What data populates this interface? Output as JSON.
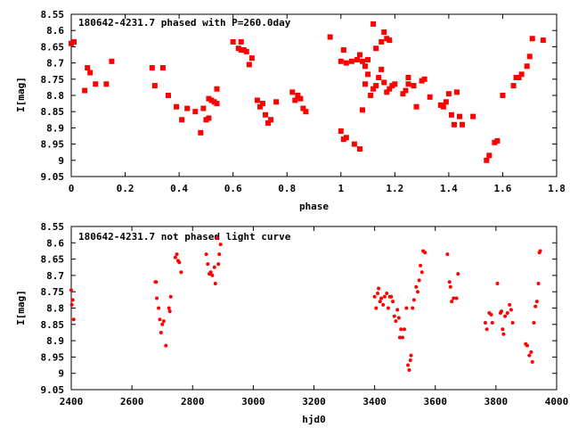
{
  "chart_data": [
    {
      "type": "scatter",
      "title": "180642-4231.7 phased with P=260.0day",
      "xlabel": "phase",
      "ylabel": "I[mag]",
      "xlim": [
        0,
        1.8
      ],
      "ylim": [
        8.55,
        9.05
      ],
      "y_inverted": true,
      "xticks": [
        "0",
        "0.2",
        "0.4",
        "0.6",
        "0.8",
        "1",
        "1.2",
        "1.4",
        "1.6",
        "1.8"
      ],
      "yticks": [
        "8.55",
        "8.6",
        "8.65",
        "8.7",
        "8.75",
        "8.8",
        "8.85",
        "8.9",
        "8.95",
        "9",
        "9.05"
      ],
      "marker": "filled-square",
      "color": "#ff0000",
      "points": [
        [
          0.0,
          8.64
        ],
        [
          0.01,
          8.635
        ],
        [
          0.05,
          8.785
        ],
        [
          0.06,
          8.715
        ],
        [
          0.07,
          8.73
        ],
        [
          0.09,
          8.765
        ],
        [
          0.13,
          8.765
        ],
        [
          0.15,
          8.695
        ],
        [
          0.3,
          8.715
        ],
        [
          0.31,
          8.77
        ],
        [
          0.34,
          8.715
        ],
        [
          0.36,
          8.8
        ],
        [
          0.39,
          8.835
        ],
        [
          0.41,
          8.875
        ],
        [
          0.43,
          8.84
        ],
        [
          0.46,
          8.85
        ],
        [
          0.48,
          8.915
        ],
        [
          0.49,
          8.84
        ],
        [
          0.5,
          8.875
        ],
        [
          0.51,
          8.87
        ],
        [
          0.51,
          8.81
        ],
        [
          0.52,
          8.815
        ],
        [
          0.53,
          8.82
        ],
        [
          0.54,
          8.78
        ],
        [
          0.54,
          8.825
        ],
        [
          0.6,
          8.635
        ],
        [
          0.62,
          8.655
        ],
        [
          0.63,
          8.66
        ],
        [
          0.63,
          8.635
        ],
        [
          0.64,
          8.66
        ],
        [
          0.65,
          8.665
        ],
        [
          0.66,
          8.705
        ],
        [
          0.67,
          8.685
        ],
        [
          0.69,
          8.815
        ],
        [
          0.7,
          8.835
        ],
        [
          0.71,
          8.825
        ],
        [
          0.72,
          8.86
        ],
        [
          0.73,
          8.885
        ],
        [
          0.74,
          8.875
        ],
        [
          0.76,
          8.82
        ],
        [
          0.82,
          8.79
        ],
        [
          0.83,
          8.815
        ],
        [
          0.84,
          8.8
        ],
        [
          0.85,
          8.81
        ],
        [
          0.86,
          8.84
        ],
        [
          0.87,
          8.85
        ],
        [
          0.96,
          8.62
        ],
        [
          1.0,
          8.695
        ],
        [
          1.0,
          8.91
        ],
        [
          1.01,
          8.66
        ],
        [
          1.01,
          8.935
        ],
        [
          1.02,
          8.93
        ],
        [
          1.02,
          8.7
        ],
        [
          1.04,
          8.695
        ],
        [
          1.05,
          8.95
        ],
        [
          1.06,
          8.69
        ],
        [
          1.07,
          8.675
        ],
        [
          1.07,
          8.965
        ],
        [
          1.08,
          8.845
        ],
        [
          1.08,
          8.695
        ],
        [
          1.09,
          8.765
        ],
        [
          1.09,
          8.71
        ],
        [
          1.1,
          8.735
        ],
        [
          1.1,
          8.69
        ],
        [
          1.11,
          8.8
        ],
        [
          1.12,
          8.58
        ],
        [
          1.12,
          8.78
        ],
        [
          1.13,
          8.655
        ],
        [
          1.13,
          8.77
        ],
        [
          1.14,
          8.745
        ],
        [
          1.15,
          8.72
        ],
        [
          1.15,
          8.635
        ],
        [
          1.16,
          8.76
        ],
        [
          1.16,
          8.605
        ],
        [
          1.17,
          8.79
        ],
        [
          1.17,
          8.625
        ],
        [
          1.18,
          8.63
        ],
        [
          1.18,
          8.78
        ],
        [
          1.19,
          8.77
        ],
        [
          1.2,
          8.765
        ],
        [
          1.23,
          8.795
        ],
        [
          1.24,
          8.785
        ],
        [
          1.25,
          8.745
        ],
        [
          1.25,
          8.765
        ],
        [
          1.27,
          8.77
        ],
        [
          1.28,
          8.835
        ],
        [
          1.3,
          8.755
        ],
        [
          1.31,
          8.75
        ],
        [
          1.33,
          8.805
        ],
        [
          1.37,
          8.83
        ],
        [
          1.38,
          8.835
        ],
        [
          1.39,
          8.82
        ],
        [
          1.4,
          8.795
        ],
        [
          1.41,
          8.86
        ],
        [
          1.42,
          8.89
        ],
        [
          1.43,
          8.79
        ],
        [
          1.44,
          8.865
        ],
        [
          1.45,
          8.89
        ],
        [
          1.49,
          8.865
        ],
        [
          1.54,
          9.0
        ],
        [
          1.55,
          8.985
        ],
        [
          1.57,
          8.945
        ],
        [
          1.58,
          8.94
        ],
        [
          1.6,
          8.8
        ],
        [
          1.64,
          8.77
        ],
        [
          1.65,
          8.745
        ],
        [
          1.66,
          8.745
        ],
        [
          1.67,
          8.735
        ],
        [
          1.69,
          8.71
        ],
        [
          1.7,
          8.68
        ],
        [
          1.71,
          8.625
        ],
        [
          1.75,
          8.63
        ]
      ]
    },
    {
      "type": "scatter",
      "title": "180642-4231.7 not phased light curve",
      "xlabel": "hjd0",
      "ylabel": "I[mag]",
      "xlim": [
        2400,
        4000
      ],
      "ylim": [
        8.55,
        9.05
      ],
      "y_inverted": true,
      "xticks": [
        "2400",
        "2600",
        "2800",
        "3000",
        "3200",
        "3400",
        "3600",
        "3800",
        "4000"
      ],
      "yticks": [
        "8.55",
        "8.6",
        "8.65",
        "8.7",
        "8.75",
        "8.8",
        "8.85",
        "8.9",
        "8.95",
        "9",
        "9.05"
      ],
      "marker": "small-dot",
      "color": "#ff0000",
      "points": [
        [
          2400,
          8.745
        ],
        [
          2402,
          8.79
        ],
        [
          2405,
          8.775
        ],
        [
          2408,
          8.835
        ],
        [
          2677,
          8.72
        ],
        [
          2680,
          8.72
        ],
        [
          2682,
          8.77
        ],
        [
          2688,
          8.8
        ],
        [
          2692,
          8.835
        ],
        [
          2696,
          8.875
        ],
        [
          2700,
          8.85
        ],
        [
          2705,
          8.84
        ],
        [
          2712,
          8.915
        ],
        [
          2722,
          8.8
        ],
        [
          2725,
          8.81
        ],
        [
          2728,
          8.765
        ],
        [
          2743,
          8.645
        ],
        [
          2748,
          8.635
        ],
        [
          2752,
          8.655
        ],
        [
          2756,
          8.66
        ],
        [
          2762,
          8.69
        ],
        [
          2845,
          8.635
        ],
        [
          2850,
          8.665
        ],
        [
          2855,
          8.695
        ],
        [
          2860,
          8.69
        ],
        [
          2865,
          8.7
        ],
        [
          2872,
          8.675
        ],
        [
          2875,
          8.725
        ],
        [
          2880,
          8.585
        ],
        [
          2885,
          8.665
        ],
        [
          2888,
          8.635
        ],
        [
          2892,
          8.605
        ],
        [
          3400,
          8.765
        ],
        [
          3405,
          8.8
        ],
        [
          3410,
          8.755
        ],
        [
          3413,
          8.74
        ],
        [
          3418,
          8.78
        ],
        [
          3422,
          8.77
        ],
        [
          3428,
          8.79
        ],
        [
          3433,
          8.765
        ],
        [
          3440,
          8.755
        ],
        [
          3445,
          8.8
        ],
        [
          3450,
          8.765
        ],
        [
          3455,
          8.765
        ],
        [
          3460,
          8.78
        ],
        [
          3465,
          8.825
        ],
        [
          3470,
          8.84
        ],
        [
          3475,
          8.805
        ],
        [
          3480,
          8.83
        ],
        [
          3483,
          8.89
        ],
        [
          3487,
          8.865
        ],
        [
          3492,
          8.89
        ],
        [
          3498,
          8.865
        ],
        [
          3505,
          8.8
        ],
        [
          3510,
          8.975
        ],
        [
          3514,
          8.99
        ],
        [
          3518,
          8.96
        ],
        [
          3520,
          8.945
        ],
        [
          3525,
          8.8
        ],
        [
          3530,
          8.775
        ],
        [
          3537,
          8.735
        ],
        [
          3542,
          8.75
        ],
        [
          3547,
          8.715
        ],
        [
          3551,
          8.67
        ],
        [
          3556,
          8.69
        ],
        [
          3560,
          8.625
        ],
        [
          3566,
          8.63
        ],
        [
          3640,
          8.635
        ],
        [
          3647,
          8.72
        ],
        [
          3650,
          8.735
        ],
        [
          3654,
          8.78
        ],
        [
          3660,
          8.77
        ],
        [
          3670,
          8.77
        ],
        [
          3675,
          8.695
        ],
        [
          3765,
          8.845
        ],
        [
          3770,
          8.865
        ],
        [
          3778,
          8.815
        ],
        [
          3784,
          8.82
        ],
        [
          3788,
          8.845
        ],
        [
          3805,
          8.725
        ],
        [
          3815,
          8.815
        ],
        [
          3818,
          8.81
        ],
        [
          3822,
          8.865
        ],
        [
          3825,
          8.88
        ],
        [
          3830,
          8.825
        ],
        [
          3838,
          8.815
        ],
        [
          3845,
          8.79
        ],
        [
          3850,
          8.805
        ],
        [
          3855,
          8.845
        ],
        [
          3898,
          8.91
        ],
        [
          3903,
          8.915
        ],
        [
          3910,
          8.945
        ],
        [
          3916,
          8.935
        ],
        [
          3920,
          8.965
        ],
        [
          3925,
          8.845
        ],
        [
          3930,
          8.795
        ],
        [
          3935,
          8.78
        ],
        [
          3940,
          8.725
        ],
        [
          3943,
          8.63
        ],
        [
          3946,
          8.625
        ]
      ]
    }
  ]
}
